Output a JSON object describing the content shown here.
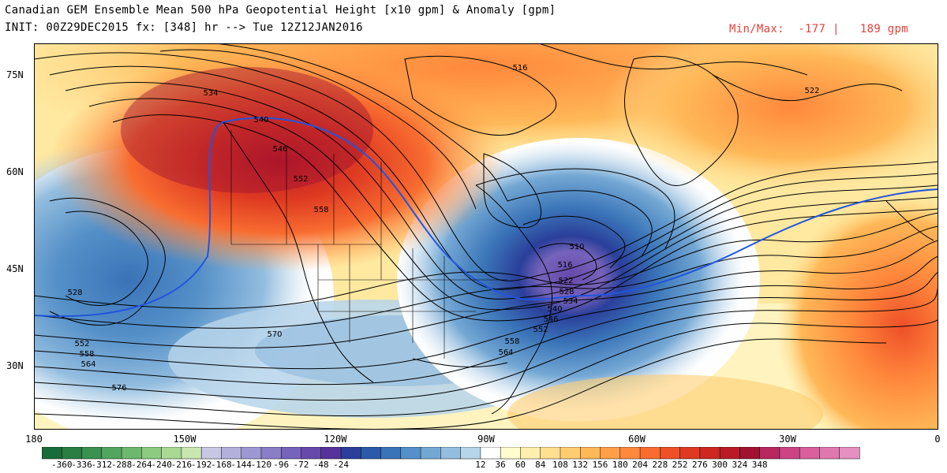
{
  "header": {
    "title": "Canadian GEM Ensemble Mean 500 hPa Geopotential Height [x10 gpm] & Anomaly [gpm]",
    "init_line": "INIT: 00Z29DEC2015 fx: [348] hr --> Tue 12Z12JAN2016",
    "minmax_label": "Min/Max:",
    "min_value": "-177",
    "separator": "|",
    "max_value": "189 gpm"
  },
  "axes": {
    "lat_labels": [
      "75N",
      "60N",
      "45N",
      "30N"
    ],
    "lon_labels": [
      "180",
      "150W",
      "120W",
      "90W",
      "60W",
      "30W",
      "0"
    ]
  },
  "contour_labels": [
    "534",
    "540",
    "546",
    "552",
    "558",
    "516",
    "522",
    "510",
    "528",
    "552",
    "558",
    "564",
    "570",
    "576",
    "528",
    "534",
    "540",
    "546",
    "552",
    "558",
    "564",
    "516",
    "522"
  ],
  "colorbar": {
    "ticks": [
      "-360",
      "-336",
      "-312",
      "-288",
      "-264",
      "-240",
      "-216",
      "-192",
      "-168",
      "-144",
      "-120",
      "-96",
      "-72",
      "-48",
      "-24",
      "12",
      "36",
      "60",
      "84",
      "108",
      "132",
      "156",
      "180",
      "204",
      "228",
      "252",
      "276",
      "300",
      "324",
      "348"
    ],
    "colors": [
      "#1a6b3a",
      "#2a7e42",
      "#3a9150",
      "#52a55e",
      "#6cb86e",
      "#8ccb80",
      "#a9d995",
      "#c8e6b0",
      "#c8c8e4",
      "#b4b0dc",
      "#9e98d2",
      "#8a7ec6",
      "#7663ba",
      "#6649aa",
      "#56339a",
      "#2a3f9a",
      "#2c5aa8",
      "#3a74b8",
      "#5590c8",
      "#74a8d4",
      "#94bedf",
      "#b6d4ea",
      "#fefefe",
      "#fffcd0",
      "#fff0b0",
      "#ffe090",
      "#ffcd70",
      "#ffb858",
      "#ffa048",
      "#ff883c",
      "#f86c30",
      "#ee5028",
      "#de3a22",
      "#cc2820",
      "#b81a26",
      "#a01230",
      "#b82860",
      "#cc4484",
      "#d8609c",
      "#e078b0",
      "#e490c0"
    ]
  }
}
